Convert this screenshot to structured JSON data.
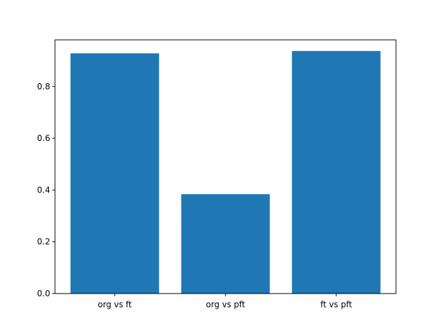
{
  "chart_data": {
    "type": "bar",
    "title": "",
    "xlabel": "",
    "ylabel": "",
    "categories": [
      "org vs ft",
      "org vs pft",
      "ft vs pft"
    ],
    "values": [
      0.928,
      0.384,
      0.937
    ],
    "ylim": [
      0,
      0.98
    ],
    "yticks": [
      "0.0",
      "0.2",
      "0.4",
      "0.6",
      "0.8"
    ],
    "grid": false,
    "legend": "none",
    "bar_color": "#1f77b4"
  }
}
